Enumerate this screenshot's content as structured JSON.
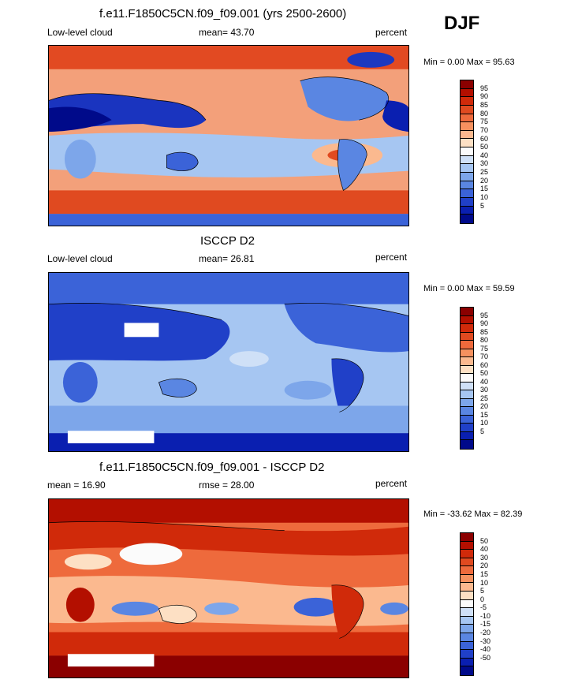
{
  "season": "DJF",
  "panels": [
    {
      "title": "f.e11.F1850C5CN.f09_f09.001 (yrs 2500-2600)",
      "left_label": "Low-level cloud",
      "center_label": "mean=  43.70",
      "right_label": "percent",
      "minmax": "Min =   0.00 Max =  95.63",
      "colorbar": {
        "colors": [
          "#8b0000",
          "#b30f00",
          "#d02a0a",
          "#e04a20",
          "#ee6a3c",
          "#f6915f",
          "#fbb98f",
          "#fde0c4",
          "#fbfbfb",
          "#cfe0f7",
          "#a6c6f2",
          "#7da6ea",
          "#5a86e2",
          "#3b63d8",
          "#2040c8",
          "#0a1fb0",
          "#000a8a"
        ],
        "labels": [
          "95",
          "90",
          "85",
          "80",
          "75",
          "70",
          "60",
          "50",
          "40",
          "30",
          "25",
          "20",
          "15",
          "10",
          "5"
        ]
      }
    },
    {
      "title": "ISCCP D2",
      "left_label": "Low-level cloud",
      "center_label": "mean=  26.81",
      "right_label": "percent",
      "minmax": "Min =   0.00 Max =  59.59",
      "colorbar": {
        "colors": [
          "#8b0000",
          "#b30f00",
          "#d02a0a",
          "#e04a20",
          "#ee6a3c",
          "#f6915f",
          "#fbb98f",
          "#fde0c4",
          "#fbfbfb",
          "#cfe0f7",
          "#a6c6f2",
          "#7da6ea",
          "#5a86e2",
          "#3b63d8",
          "#2040c8",
          "#0a1fb0",
          "#000a8a"
        ],
        "labels": [
          "95",
          "90",
          "85",
          "80",
          "75",
          "70",
          "60",
          "50",
          "40",
          "30",
          "25",
          "20",
          "15",
          "10",
          "5"
        ]
      }
    },
    {
      "title": "f.e11.F1850C5CN.f09_f09.001 - ISCCP D2",
      "left_label": "mean =  16.90",
      "center_label": "rmse =  28.00",
      "right_label": "percent",
      "minmax": "Min = -33.62 Max =  82.39",
      "colorbar": {
        "colors": [
          "#8b0000",
          "#b30f00",
          "#d02a0a",
          "#e04a20",
          "#ee6a3c",
          "#f6915f",
          "#fbb98f",
          "#fde0c4",
          "#fbfbfb",
          "#cfe0f7",
          "#a6c6f2",
          "#7da6ea",
          "#5a86e2",
          "#3b63d8",
          "#2040c8",
          "#0a1fb0",
          "#000a8a"
        ],
        "labels": [
          "50",
          "40",
          "30",
          "20",
          "15",
          "10",
          "5",
          "0",
          "-5",
          "-10",
          "-15",
          "-20",
          "-30",
          "-40",
          "-50"
        ]
      }
    }
  ]
}
